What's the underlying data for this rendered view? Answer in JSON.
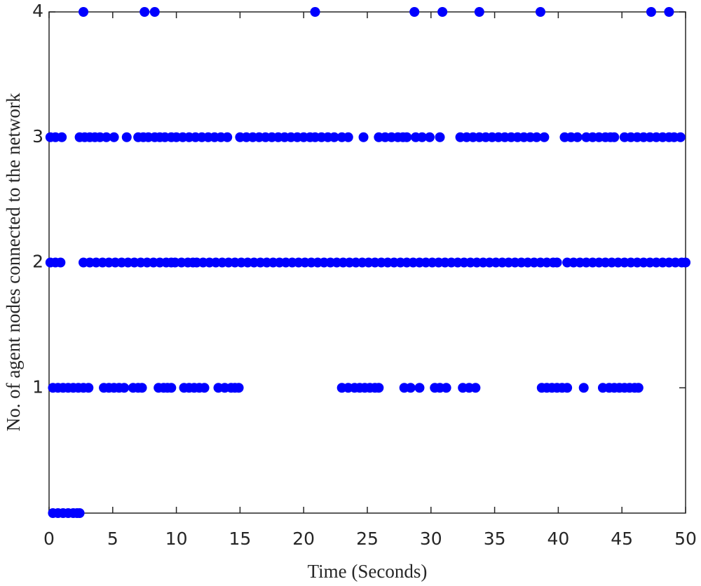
{
  "chart_data": {
    "type": "scatter",
    "x_label": "Time (Seconds)",
    "y_label": "No. of agent nodes connected to the network",
    "xlim": [
      0,
      50
    ],
    "xticks": [
      0,
      5,
      10,
      15,
      20,
      25,
      30,
      35,
      40,
      45,
      50
    ],
    "ylim": [
      0,
      4
    ],
    "yticks": [
      1,
      2,
      3,
      4
    ],
    "grid": false,
    "series": [
      {
        "color": "#0000ff",
        "points": [
          [
            2.7,
            4
          ],
          [
            7.5,
            4
          ],
          [
            8.3,
            4
          ],
          [
            20.9,
            4
          ],
          [
            28.7,
            4
          ],
          [
            30.9,
            4
          ],
          [
            33.8,
            4
          ],
          [
            38.6,
            4
          ],
          [
            47.3,
            4
          ],
          [
            48.7,
            4
          ],
          [
            0.1,
            3
          ],
          [
            0.5,
            3
          ],
          [
            1.0,
            3
          ],
          [
            2.4,
            3
          ],
          [
            2.8,
            3
          ],
          [
            3.2,
            3
          ],
          [
            3.6,
            3
          ],
          [
            4.0,
            3
          ],
          [
            4.5,
            3
          ],
          [
            5.1,
            3
          ],
          [
            6.1,
            3
          ],
          [
            7.0,
            3
          ],
          [
            7.4,
            3
          ],
          [
            7.8,
            3
          ],
          [
            8.3,
            3
          ],
          [
            8.7,
            3
          ],
          [
            9.1,
            3
          ],
          [
            9.6,
            3
          ],
          [
            10.0,
            3
          ],
          [
            10.5,
            3
          ],
          [
            11.0,
            3
          ],
          [
            11.5,
            3
          ],
          [
            12.0,
            3
          ],
          [
            12.5,
            3
          ],
          [
            13.0,
            3
          ],
          [
            13.5,
            3
          ],
          [
            14.0,
            3
          ],
          [
            15.0,
            3
          ],
          [
            15.5,
            3
          ],
          [
            16.0,
            3
          ],
          [
            16.5,
            3
          ],
          [
            17.0,
            3
          ],
          [
            17.5,
            3
          ],
          [
            18.0,
            3
          ],
          [
            18.5,
            3
          ],
          [
            19.0,
            3
          ],
          [
            19.5,
            3
          ],
          [
            20.0,
            3
          ],
          [
            20.5,
            3
          ],
          [
            20.9,
            3
          ],
          [
            21.4,
            3
          ],
          [
            21.9,
            3
          ],
          [
            22.4,
            3
          ],
          [
            23.0,
            3
          ],
          [
            23.5,
            3
          ],
          [
            24.7,
            3
          ],
          [
            25.9,
            3
          ],
          [
            26.4,
            3
          ],
          [
            26.9,
            3
          ],
          [
            27.4,
            3
          ],
          [
            27.8,
            3
          ],
          [
            28.1,
            3
          ],
          [
            28.8,
            3
          ],
          [
            29.3,
            3
          ],
          [
            29.9,
            3
          ],
          [
            30.7,
            3
          ],
          [
            32.3,
            3
          ],
          [
            32.8,
            3
          ],
          [
            33.3,
            3
          ],
          [
            33.8,
            3
          ],
          [
            34.3,
            3
          ],
          [
            34.8,
            3
          ],
          [
            35.3,
            3
          ],
          [
            35.8,
            3
          ],
          [
            36.3,
            3
          ],
          [
            36.8,
            3
          ],
          [
            37.3,
            3
          ],
          [
            37.8,
            3
          ],
          [
            38.3,
            3
          ],
          [
            38.9,
            3
          ],
          [
            40.5,
            3
          ],
          [
            41.0,
            3
          ],
          [
            41.5,
            3
          ],
          [
            42.2,
            3
          ],
          [
            42.7,
            3
          ],
          [
            43.2,
            3
          ],
          [
            43.7,
            3
          ],
          [
            44.1,
            3
          ],
          [
            44.4,
            3
          ],
          [
            45.2,
            3
          ],
          [
            45.7,
            3
          ],
          [
            46.2,
            3
          ],
          [
            46.7,
            3
          ],
          [
            47.2,
            3
          ],
          [
            47.7,
            3
          ],
          [
            48.2,
            3
          ],
          [
            48.7,
            3
          ],
          [
            49.1,
            3
          ],
          [
            49.6,
            3
          ],
          [
            0.1,
            2
          ],
          [
            0.5,
            2
          ],
          [
            0.9,
            2
          ],
          [
            2.7,
            2
          ],
          [
            3.2,
            2
          ],
          [
            3.7,
            2
          ],
          [
            4.2,
            2
          ],
          [
            4.7,
            2
          ],
          [
            5.2,
            2
          ],
          [
            5.7,
            2
          ],
          [
            6.2,
            2
          ],
          [
            6.7,
            2
          ],
          [
            7.2,
            2
          ],
          [
            7.7,
            2
          ],
          [
            8.2,
            2
          ],
          [
            8.7,
            2
          ],
          [
            9.2,
            2
          ],
          [
            9.6,
            2
          ],
          [
            9.9,
            2
          ],
          [
            10.4,
            2
          ],
          [
            10.9,
            2
          ],
          [
            11.3,
            2
          ],
          [
            11.6,
            2
          ],
          [
            12.1,
            2
          ],
          [
            12.6,
            2
          ],
          [
            13.1,
            2
          ],
          [
            13.6,
            2
          ],
          [
            14.1,
            2
          ],
          [
            14.6,
            2
          ],
          [
            15.1,
            2
          ],
          [
            15.6,
            2
          ],
          [
            16.1,
            2
          ],
          [
            16.6,
            2
          ],
          [
            17.1,
            2
          ],
          [
            17.6,
            2
          ],
          [
            18.1,
            2
          ],
          [
            18.6,
            2
          ],
          [
            19.1,
            2
          ],
          [
            19.6,
            2
          ],
          [
            20.1,
            2
          ],
          [
            20.6,
            2
          ],
          [
            21.1,
            2
          ],
          [
            21.6,
            2
          ],
          [
            22.1,
            2
          ],
          [
            22.6,
            2
          ],
          [
            23.1,
            2
          ],
          [
            23.6,
            2
          ],
          [
            24.1,
            2
          ],
          [
            24.6,
            2
          ],
          [
            25.1,
            2
          ],
          [
            25.6,
            2
          ],
          [
            26.1,
            2
          ],
          [
            26.6,
            2
          ],
          [
            27.1,
            2
          ],
          [
            27.6,
            2
          ],
          [
            28.1,
            2
          ],
          [
            28.6,
            2
          ],
          [
            29.1,
            2
          ],
          [
            29.6,
            2
          ],
          [
            30.1,
            2
          ],
          [
            30.6,
            2
          ],
          [
            31.1,
            2
          ],
          [
            31.6,
            2
          ],
          [
            32.1,
            2
          ],
          [
            32.6,
            2
          ],
          [
            33.1,
            2
          ],
          [
            33.6,
            2
          ],
          [
            34.1,
            2
          ],
          [
            34.6,
            2
          ],
          [
            35.1,
            2
          ],
          [
            35.6,
            2
          ],
          [
            36.1,
            2
          ],
          [
            36.6,
            2
          ],
          [
            37.1,
            2
          ],
          [
            37.6,
            2
          ],
          [
            38.1,
            2
          ],
          [
            38.6,
            2
          ],
          [
            39.1,
            2
          ],
          [
            39.6,
            2
          ],
          [
            39.9,
            2
          ],
          [
            40.7,
            2
          ],
          [
            41.2,
            2
          ],
          [
            41.7,
            2
          ],
          [
            42.2,
            2
          ],
          [
            42.7,
            2
          ],
          [
            43.2,
            2
          ],
          [
            43.7,
            2
          ],
          [
            44.2,
            2
          ],
          [
            44.7,
            2
          ],
          [
            45.2,
            2
          ],
          [
            45.7,
            2
          ],
          [
            46.2,
            2
          ],
          [
            46.7,
            2
          ],
          [
            47.2,
            2
          ],
          [
            47.7,
            2
          ],
          [
            48.2,
            2
          ],
          [
            48.7,
            2
          ],
          [
            49.2,
            2
          ],
          [
            49.7,
            2
          ],
          [
            50.0,
            2
          ],
          [
            0.3,
            1
          ],
          [
            0.7,
            1
          ],
          [
            1.1,
            1
          ],
          [
            1.5,
            1
          ],
          [
            1.9,
            1
          ],
          [
            2.3,
            1
          ],
          [
            2.7,
            1
          ],
          [
            3.1,
            1
          ],
          [
            4.3,
            1
          ],
          [
            4.7,
            1
          ],
          [
            5.1,
            1
          ],
          [
            5.5,
            1
          ],
          [
            5.9,
            1
          ],
          [
            6.6,
            1
          ],
          [
            7.0,
            1
          ],
          [
            7.3,
            1
          ],
          [
            8.6,
            1
          ],
          [
            9.0,
            1
          ],
          [
            9.3,
            1
          ],
          [
            9.6,
            1
          ],
          [
            10.6,
            1
          ],
          [
            11.0,
            1
          ],
          [
            11.4,
            1
          ],
          [
            11.8,
            1
          ],
          [
            12.2,
            1
          ],
          [
            13.3,
            1
          ],
          [
            13.8,
            1
          ],
          [
            14.3,
            1
          ],
          [
            14.6,
            1
          ],
          [
            14.9,
            1
          ],
          [
            23.0,
            1
          ],
          [
            23.5,
            1
          ],
          [
            24.0,
            1
          ],
          [
            24.4,
            1
          ],
          [
            24.8,
            1
          ],
          [
            25.2,
            1
          ],
          [
            25.6,
            1
          ],
          [
            25.9,
            1
          ],
          [
            27.9,
            1
          ],
          [
            28.4,
            1
          ],
          [
            29.1,
            1
          ],
          [
            30.3,
            1
          ],
          [
            30.7,
            1
          ],
          [
            31.2,
            1
          ],
          [
            32.5,
            1
          ],
          [
            33.0,
            1
          ],
          [
            33.5,
            1
          ],
          [
            38.7,
            1
          ],
          [
            39.1,
            1
          ],
          [
            39.5,
            1
          ],
          [
            39.9,
            1
          ],
          [
            40.3,
            1
          ],
          [
            40.7,
            1
          ],
          [
            42.0,
            1
          ],
          [
            43.5,
            1
          ],
          [
            44.0,
            1
          ],
          [
            44.4,
            1
          ],
          [
            44.8,
            1
          ],
          [
            45.2,
            1
          ],
          [
            45.6,
            1
          ],
          [
            46.0,
            1
          ],
          [
            46.3,
            1
          ],
          [
            0.3,
            0
          ],
          [
            0.7,
            0
          ],
          [
            1.1,
            0
          ],
          [
            1.5,
            0
          ],
          [
            1.9,
            0
          ],
          [
            2.2,
            0
          ],
          [
            2.4,
            0
          ]
        ]
      }
    ]
  }
}
